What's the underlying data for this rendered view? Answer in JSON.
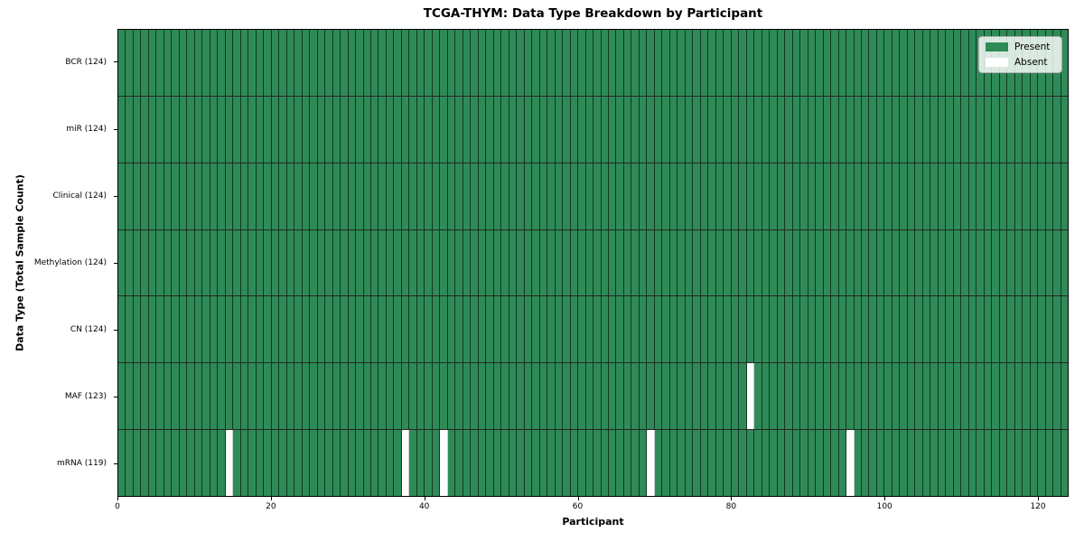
{
  "chart": {
    "title": "TCGA-THYM: Data Type Breakdown by Participant",
    "xlabel": "Participant",
    "ylabel": "Data Type (Total Sample Count)"
  },
  "legend": {
    "items": [
      {
        "label": "Present",
        "color": "#2e8b57"
      },
      {
        "label": "Absent",
        "color": "#ffffff"
      }
    ]
  },
  "chart_data": {
    "type": "heatmap",
    "title": "TCGA-THYM: Data Type Breakdown by Participant",
    "xlabel": "Participant",
    "ylabel": "Data Type (Total Sample Count)",
    "legend_entries": [
      "Present",
      "Absent"
    ],
    "legend_position": "upper right",
    "n_participants": 124,
    "xlim": [
      0,
      124
    ],
    "x_ticks": [
      0,
      20,
      40,
      60,
      80,
      100,
      120
    ],
    "grid": "cell-borders",
    "colors": {
      "present": "#2e8b57",
      "absent": "#ffffff",
      "cell_edge": "rgba(0,0,0,0.6)"
    },
    "rows": [
      {
        "label": "BCR (124)",
        "present_count": 124,
        "absent_participants": []
      },
      {
        "label": "miR (124)",
        "present_count": 124,
        "absent_participants": []
      },
      {
        "label": "Clinical (124)",
        "present_count": 124,
        "absent_participants": []
      },
      {
        "label": "Methylation (124)",
        "present_count": 124,
        "absent_participants": []
      },
      {
        "label": "CN (124)",
        "present_count": 124,
        "absent_participants": []
      },
      {
        "label": "MAF (123)",
        "present_count": 123,
        "absent_participants": [
          82
        ]
      },
      {
        "label": "mRNA (119)",
        "present_count": 119,
        "absent_participants": [
          14,
          37,
          42,
          69,
          95
        ]
      }
    ]
  }
}
